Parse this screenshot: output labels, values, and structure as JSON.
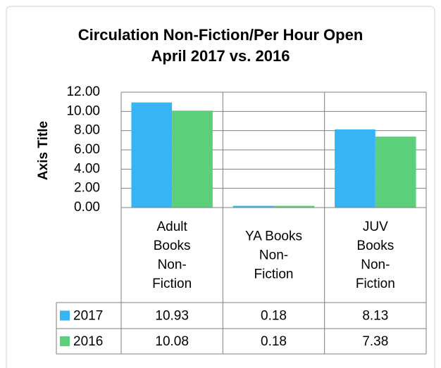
{
  "chart_data": {
    "type": "bar",
    "title": [
      "Circulation Non-Fiction/Per Hour Open",
      "April 2017 vs. 2016"
    ],
    "y_axis_label": "Axis Title",
    "categories": [
      "Adult Books Non-Fiction",
      "YA Books Non-Fiction",
      "JUV Books Non-Fiction"
    ],
    "series": [
      {
        "name": "2017",
        "color": "#36b4f4",
        "values": [
          10.93,
          0.18,
          8.13
        ]
      },
      {
        "name": "2016",
        "color": "#5ccf7a",
        "values": [
          10.08,
          0.18,
          7.38
        ]
      }
    ],
    "ylim": [
      0,
      12
    ],
    "yticks": [
      {
        "value": 0,
        "label": "0.00"
      },
      {
        "value": 2,
        "label": "2.00"
      },
      {
        "value": 4,
        "label": "4.00"
      },
      {
        "value": 6,
        "label": "6.00"
      },
      {
        "value": 8,
        "label": "8.00"
      },
      {
        "value": 10,
        "label": "10.00"
      },
      {
        "value": 12,
        "label": "12.00"
      }
    ],
    "grid": true,
    "data_table": true
  }
}
